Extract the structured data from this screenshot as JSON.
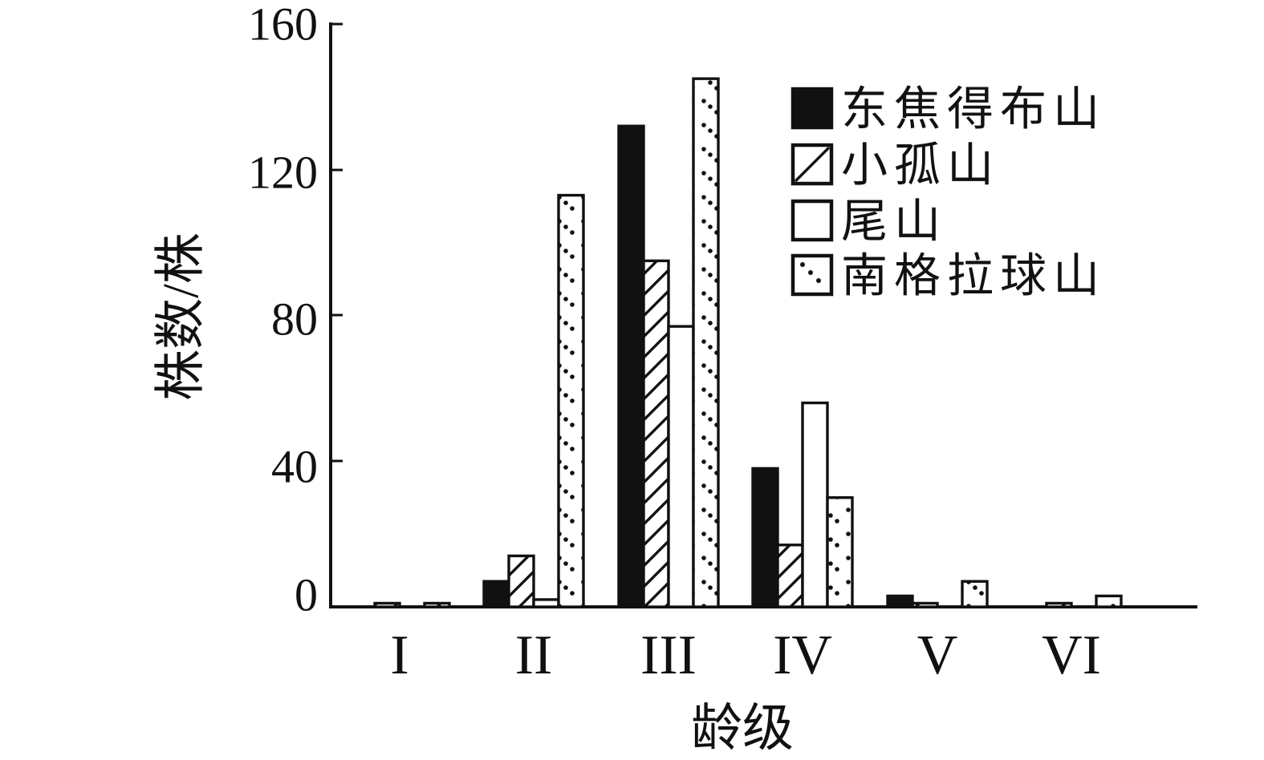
{
  "chart_data": {
    "type": "bar",
    "title": "",
    "xlabel": "龄级",
    "ylabel": "株数/株",
    "categories": [
      "I",
      "II",
      "III",
      "IV",
      "V",
      "VI"
    ],
    "series": [
      {
        "name": "东焦得布山",
        "style": "solid",
        "swatch": "black-filled-square",
        "values": [
          0,
          7,
          132,
          38,
          3,
          0
        ]
      },
      {
        "name": "小孤山",
        "style": "hatch",
        "swatch": "diagonal-hatched-square",
        "values": [
          1,
          14,
          95,
          17,
          1,
          1
        ]
      },
      {
        "name": "尾山",
        "style": "open",
        "swatch": "white-open-square",
        "values": [
          0,
          2,
          77,
          56,
          0,
          0
        ]
      },
      {
        "name": "南格拉球山",
        "style": "dots",
        "swatch": "dotted-square",
        "values": [
          1,
          113,
          145,
          30,
          7,
          3
        ]
      }
    ],
    "ylim": [
      0,
      160
    ],
    "yticks": [
      0,
      40,
      80,
      120,
      160
    ],
    "grid": false,
    "legend_position": "top-right",
    "colors": {
      "ink": "#111111",
      "background": "#ffffff"
    }
  }
}
